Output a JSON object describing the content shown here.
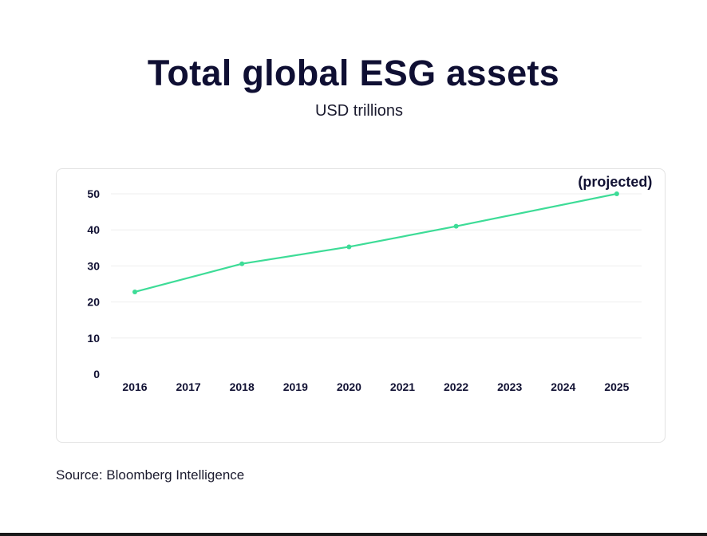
{
  "title": "Total global ESG assets",
  "subtitle": "USD trillions",
  "source": "Source: Bloomberg Intelligence",
  "chart_data": {
    "type": "line",
    "title": "Total global ESG assets",
    "ylabel": "USD trillions",
    "xlabel": "",
    "categories": [
      "2016",
      "2017",
      "2018",
      "2019",
      "2020",
      "2021",
      "2022",
      "2023",
      "2024",
      "2025"
    ],
    "series": [
      {
        "name": "Total global ESG assets",
        "x": [
          "2016",
          "2018",
          "2020",
          "2022",
          "2025"
        ],
        "values": [
          22.8,
          30.6,
          35.3,
          41.0,
          50.0
        ]
      }
    ],
    "yticks": [
      0,
      10,
      20,
      30,
      40,
      50
    ],
    "ylim": [
      0,
      50
    ],
    "grid": true,
    "annotation": "(projected)",
    "line_color": "#3ddc97"
  }
}
